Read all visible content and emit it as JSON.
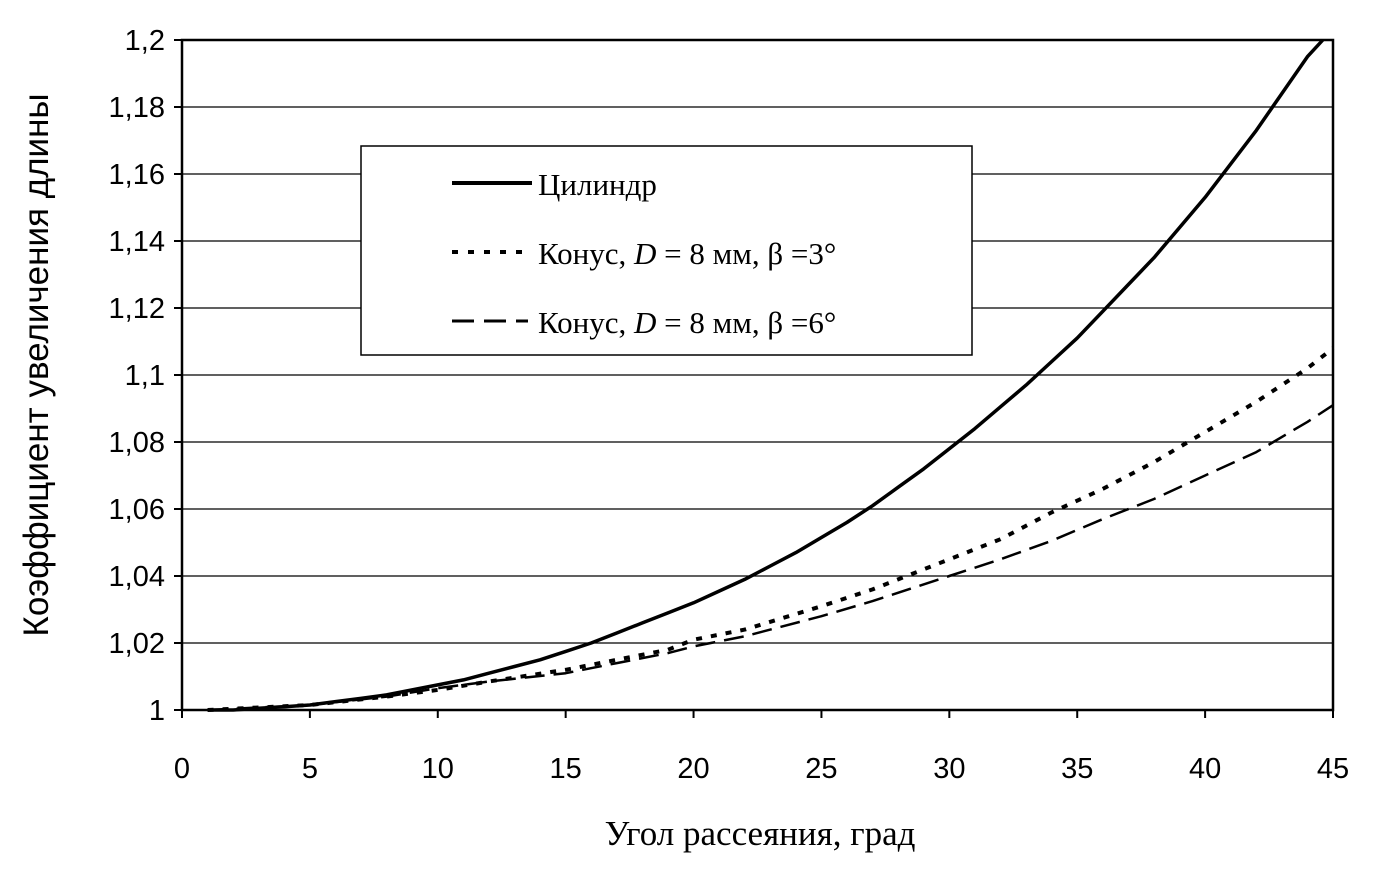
{
  "chart_data": {
    "type": "line",
    "xlabel": "Угол рассеяния, град",
    "ylabel": "Коэффициент увеличения длины",
    "xlim": [
      0,
      45
    ],
    "ylim": [
      1,
      1.2
    ],
    "xticks": [
      0,
      5,
      10,
      15,
      20,
      25,
      30,
      35,
      40,
      45
    ],
    "xtick_labels": [
      "0",
      "5",
      "10",
      "15",
      "20",
      "25",
      "30",
      "35",
      "40",
      "45"
    ],
    "yticks": [
      1,
      1.02,
      1.04,
      1.06,
      1.08,
      1.1,
      1.12,
      1.14,
      1.16,
      1.18,
      1.2
    ],
    "ytick_labels": [
      "1",
      "1,02",
      "1,04",
      "1,06",
      "1,08",
      "1,1",
      "1,12",
      "1,14",
      "1,16",
      "1,18",
      "1,2"
    ],
    "grid": "horizontal",
    "legend_position": "upper-left-center",
    "series": [
      {
        "name": "Цилиндр",
        "style": "solid",
        "color": "#000000",
        "x": [
          1,
          2,
          3,
          4,
          5,
          6,
          7,
          8,
          9,
          10,
          11,
          12,
          13,
          14,
          15,
          16,
          17,
          18,
          19,
          20,
          21,
          22,
          23,
          24,
          25,
          26,
          27,
          28,
          29,
          30,
          31,
          32,
          33,
          34,
          35,
          36,
          37,
          38,
          39,
          40,
          41,
          42,
          43,
          44,
          44.6
        ],
        "y": [
          1.0,
          1.0,
          1.0005,
          1.001,
          1.0015,
          1.0025,
          1.0035,
          1.0045,
          1.006,
          1.0075,
          1.009,
          1.011,
          1.013,
          1.015,
          1.0175,
          1.02,
          1.023,
          1.026,
          1.029,
          1.032,
          1.0355,
          1.039,
          1.043,
          1.047,
          1.0515,
          1.056,
          1.061,
          1.0665,
          1.072,
          1.078,
          1.084,
          1.0905,
          1.097,
          1.104,
          1.111,
          1.119,
          1.127,
          1.135,
          1.144,
          1.153,
          1.163,
          1.173,
          1.184,
          1.195,
          1.2
        ]
      },
      {
        "name": "Конус, D = 8 мм, β =3°",
        "style": "dotted",
        "color": "#000000",
        "x": [
          1,
          5,
          8,
          10,
          12,
          15,
          17,
          19,
          20,
          22,
          25,
          27,
          30,
          32,
          34,
          36,
          38,
          40,
          42,
          44,
          45
        ],
        "y": [
          1.0,
          1.0015,
          1.004,
          1.006,
          1.0085,
          1.012,
          1.015,
          1.018,
          1.021,
          1.024,
          1.031,
          1.036,
          1.045,
          1.051,
          1.059,
          1.066,
          1.074,
          1.083,
          1.092,
          1.102,
          1.108
        ]
      },
      {
        "name": "Конус, D = 8 мм, β =6°",
        "style": "dashed",
        "color": "#000000",
        "x": [
          1,
          5,
          8,
          10,
          12,
          15,
          17,
          19,
          20,
          22,
          25,
          27,
          30,
          32,
          34,
          36,
          38,
          40,
          42,
          44,
          45
        ],
        "y": [
          1.0,
          1.0015,
          1.004,
          1.0065,
          1.0085,
          1.011,
          1.014,
          1.017,
          1.019,
          1.022,
          1.028,
          1.0325,
          1.04,
          1.045,
          1.0505,
          1.057,
          1.063,
          1.07,
          1.077,
          1.086,
          1.091
        ]
      }
    ],
    "legend_entries": [
      {
        "label": "Цилиндр",
        "style": "solid"
      },
      {
        "label_prefix": "Конус, ",
        "label_var": "D",
        "label_suffix": " = 8 мм, β =3°",
        "style": "dotted"
      },
      {
        "label_prefix": "Конус, ",
        "label_var": "D",
        "label_suffix": " = 8 мм, β =6°",
        "style": "dashed"
      }
    ]
  }
}
